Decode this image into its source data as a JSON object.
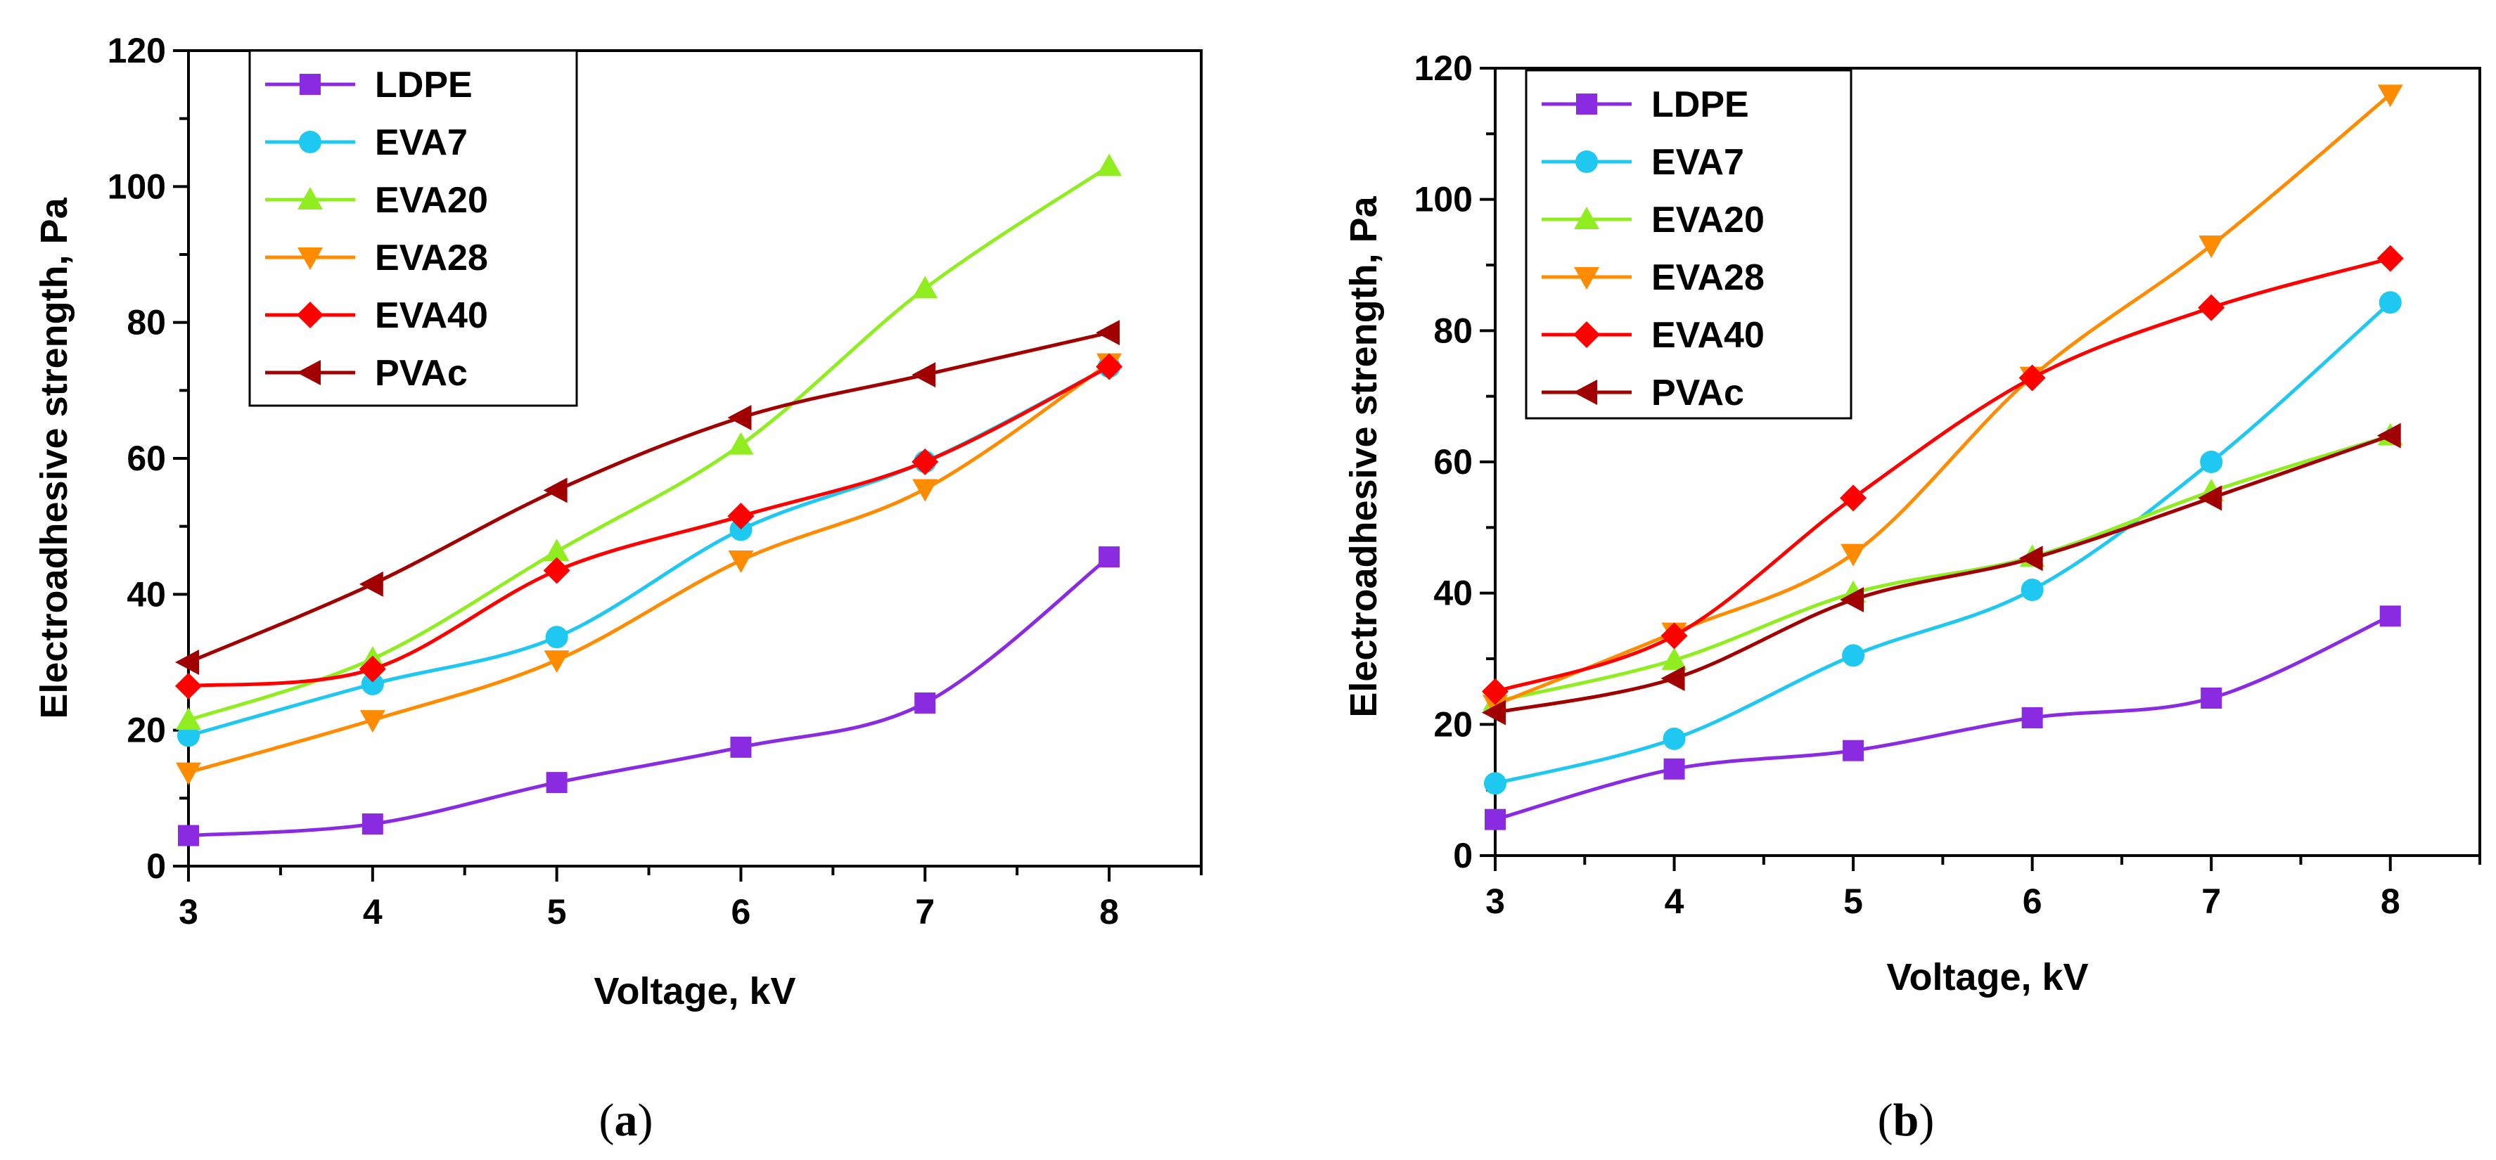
{
  "chart_data": [
    {
      "type": "line",
      "panel_label": "a",
      "xlabel": "Voltage, kV",
      "ylabel": "Electroadhesive strength, Pa",
      "xlim": [
        3,
        8.5
      ],
      "ylim": [
        0,
        120
      ],
      "xticks": [
        3,
        4,
        5,
        6,
        7,
        8
      ],
      "yticks": [
        0,
        20,
        40,
        60,
        80,
        100,
        120
      ],
      "legend_position": "top-left",
      "x": [
        3,
        4,
        5,
        6,
        7,
        8
      ],
      "series": [
        {
          "name": "LDPE",
          "color": "#8a2be2",
          "marker": "square",
          "values": [
            4.5,
            6.2,
            12.3,
            17.5,
            24,
            45.5
          ]
        },
        {
          "name": "EVA7",
          "color": "#1ec8f0",
          "marker": "circle",
          "values": [
            19.2,
            26.8,
            33.7,
            49.5,
            59.5,
            73.5
          ]
        },
        {
          "name": "EVA20",
          "color": "#90ee20",
          "marker": "triangle-up",
          "values": [
            21.5,
            30.5,
            46.3,
            62,
            85,
            103
          ]
        },
        {
          "name": "EVA28",
          "color": "#ff8c00",
          "marker": "triangle-down",
          "values": [
            13.8,
            21.5,
            30.3,
            45,
            55.5,
            74
          ]
        },
        {
          "name": "EVA40",
          "color": "#ff0000",
          "marker": "diamond",
          "values": [
            26.5,
            29,
            43.5,
            51.5,
            59.5,
            73.5
          ]
        },
        {
          "name": "PVAc",
          "color": "#a00000",
          "marker": "triangle-left",
          "values": [
            30,
            41.5,
            55.3,
            66,
            72.3,
            78.5
          ]
        }
      ]
    },
    {
      "type": "line",
      "panel_label": "b",
      "xlabel": "Voltage, kV",
      "ylabel": "Electroadhesive strength, Pa",
      "xlim": [
        3,
        8.5
      ],
      "ylim": [
        0,
        120
      ],
      "xticks": [
        3,
        4,
        5,
        6,
        7,
        8
      ],
      "yticks": [
        0,
        20,
        40,
        60,
        80,
        100,
        120
      ],
      "legend_position": "top-left",
      "x": [
        3,
        4,
        5,
        6,
        7,
        8
      ],
      "series": [
        {
          "name": "LDPE",
          "color": "#8a2be2",
          "marker": "square",
          "values": [
            5.5,
            13.2,
            16,
            21,
            24,
            36.5
          ]
        },
        {
          "name": "EVA7",
          "color": "#1ec8f0",
          "marker": "circle",
          "values": [
            11,
            17.8,
            30.5,
            40.5,
            60,
            84.3
          ]
        },
        {
          "name": "EVA20",
          "color": "#90ee20",
          "marker": "triangle-up",
          "values": [
            23.5,
            29.8,
            40,
            45.5,
            55.5,
            64
          ]
        },
        {
          "name": "EVA28",
          "color": "#ff8c00",
          "marker": "triangle-down",
          "values": [
            23,
            34,
            46,
            73,
            93,
            116
          ]
        },
        {
          "name": "EVA40",
          "color": "#ff0000",
          "marker": "diamond",
          "values": [
            25,
            33.5,
            54.5,
            72.8,
            83.5,
            91
          ]
        },
        {
          "name": "PVAc",
          "color": "#a00000",
          "marker": "triangle-left",
          "values": [
            21.8,
            27,
            39,
            45.3,
            54.5,
            64
          ]
        }
      ]
    }
  ]
}
